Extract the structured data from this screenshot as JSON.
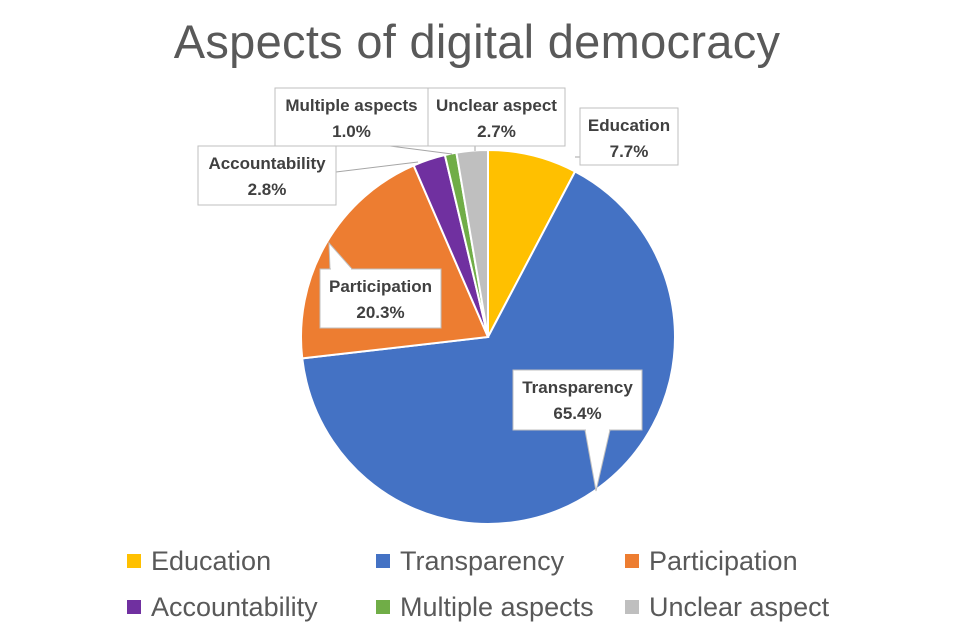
{
  "chart_data": {
    "type": "pie",
    "title": "Aspects of digital democracy",
    "slices": [
      {
        "name": "Education",
        "value": 7.7,
        "label": "7.7%",
        "color": "#FFC000"
      },
      {
        "name": "Transparency",
        "value": 65.4,
        "label": "65.4%",
        "color": "#4472C4"
      },
      {
        "name": "Participation",
        "value": 20.3,
        "label": "20.3%",
        "color": "#ED7D31"
      },
      {
        "name": "Accountability",
        "value": 2.8,
        "label": "2.8%",
        "color": "#7030A0"
      },
      {
        "name": "Multiple aspects",
        "value": 1.0,
        "label": "1.0%",
        "color": "#70AD47"
      },
      {
        "name": "Unclear aspect",
        "value": 2.7,
        "label": "2.7%",
        "color": "#BFBFBF"
      }
    ],
    "legend": "bottom",
    "start_angle": "12 o'clock, clockwise"
  }
}
